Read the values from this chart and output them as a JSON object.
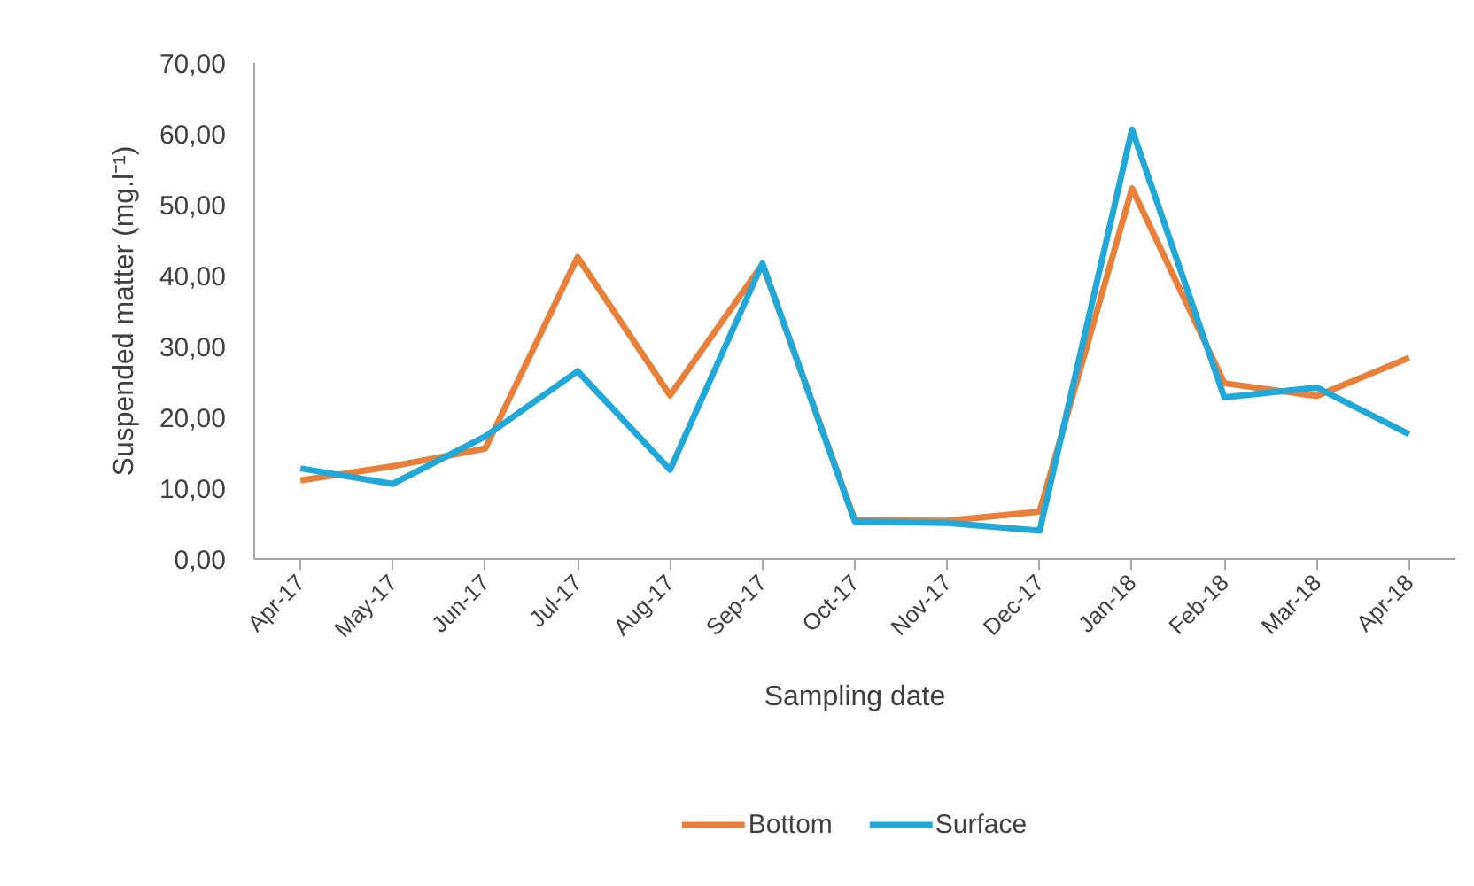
{
  "chart_data": {
    "type": "line",
    "xlabel": "Sampling date",
    "ylabel": "Suspended matter (mg.l⁻¹)",
    "categories": [
      "Apr-17",
      "May-17",
      "Jun-17",
      "Jul-17",
      "Aug-17",
      "Sep-17",
      "Oct-17",
      "Nov-17",
      "Dec-17",
      "Jan-18",
      "Feb-18",
      "Mar-18",
      "Apr-18"
    ],
    "series": [
      {
        "name": "Bottom",
        "color": "#e8803a",
        "values": [
          11.1,
          13.1,
          15.6,
          42.6,
          23.1,
          41.6,
          5.5,
          5.4,
          6.7,
          52.3,
          24.8,
          23.0,
          28.4
        ]
      },
      {
        "name": "Surface",
        "color": "#20a8d8",
        "values": [
          12.8,
          10.6,
          17.3,
          26.5,
          12.6,
          41.7,
          5.3,
          5.1,
          4.0,
          60.6,
          22.8,
          24.2,
          17.6
        ]
      }
    ],
    "ylim": [
      0,
      70
    ],
    "yticks": [
      {
        "value": 0,
        "label": "0,00"
      },
      {
        "value": 10,
        "label": "10,00"
      },
      {
        "value": 20,
        "label": "20,00"
      },
      {
        "value": 30,
        "label": "30,00"
      },
      {
        "value": 40,
        "label": "40,00"
      },
      {
        "value": 50,
        "label": "50,00"
      },
      {
        "value": 60,
        "label": "60,00"
      },
      {
        "value": 70,
        "label": "70,00"
      }
    ],
    "grid": false,
    "legend": "bottom"
  }
}
